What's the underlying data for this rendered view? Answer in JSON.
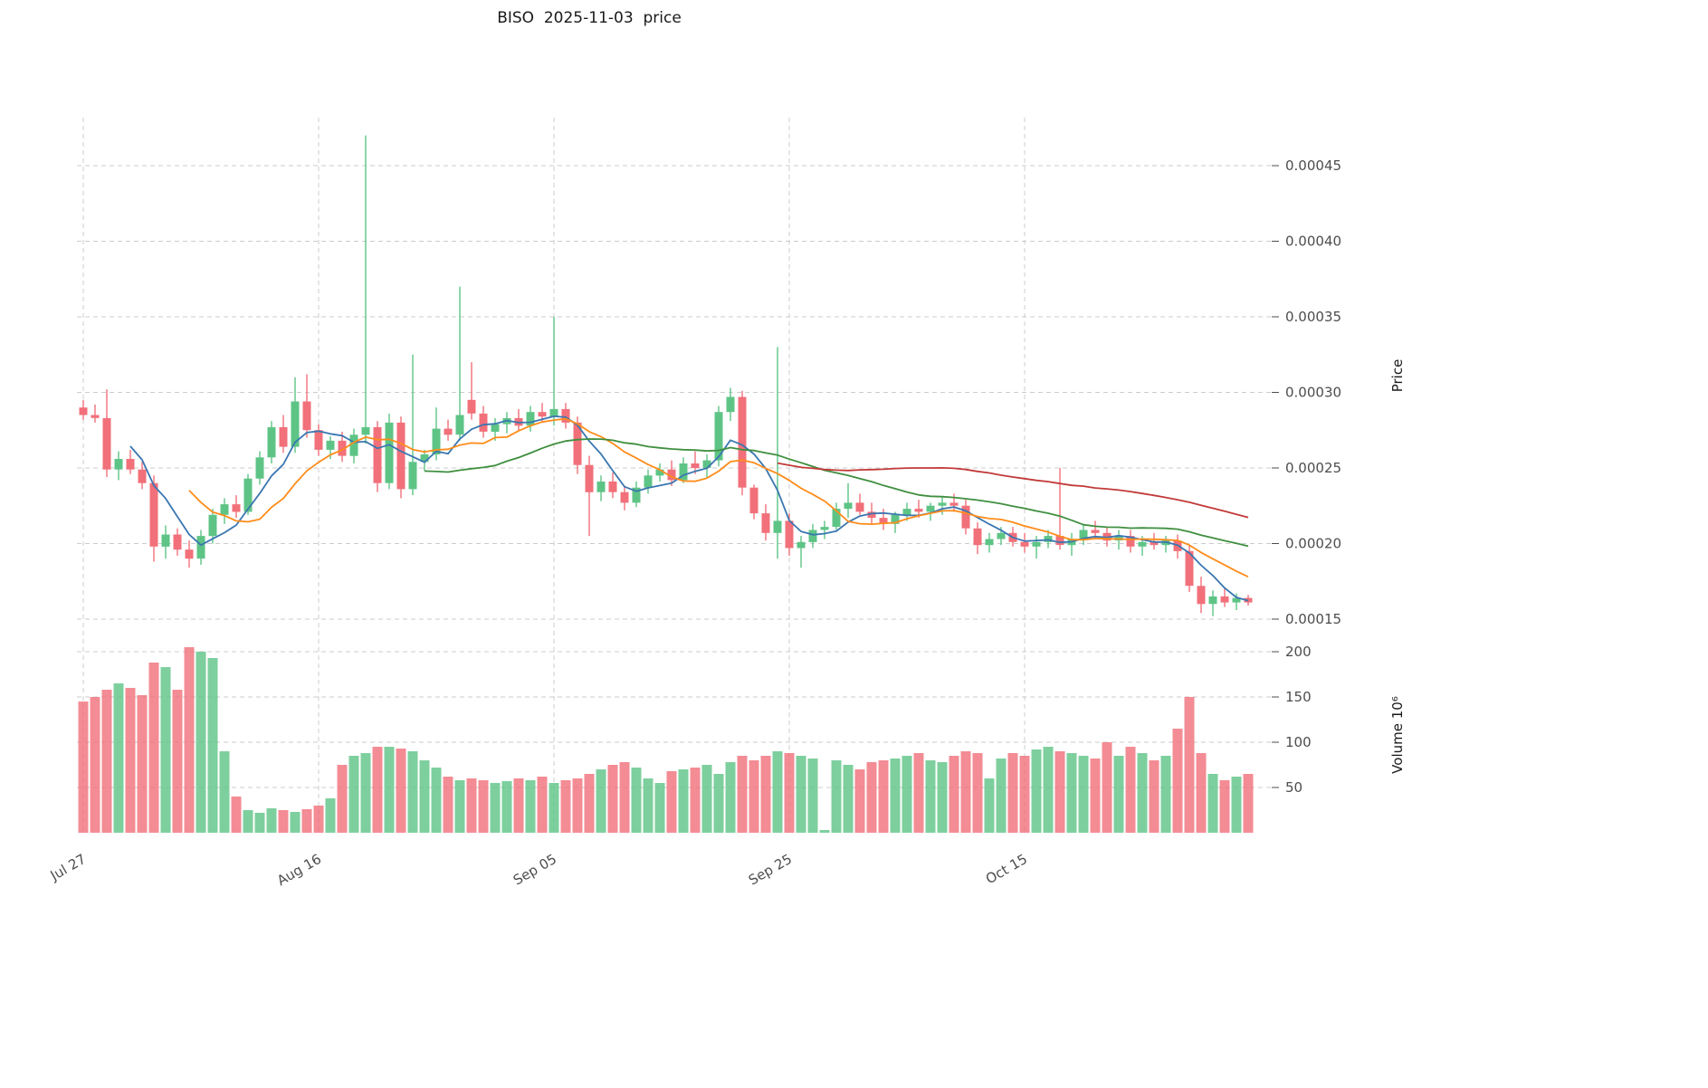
{
  "chart_data": {
    "type": "candlestick",
    "title": "BISO  2025-11-03  price",
    "price_axis": {
      "label": "Price",
      "ticks": [
        0.00015,
        0.0002,
        0.00025,
        0.0003,
        0.00035,
        0.0004,
        0.00045
      ]
    },
    "volume_axis": {
      "label": "Volume 10⁶",
      "unit": "millions",
      "ticks": [
        50,
        100,
        150,
        200
      ]
    },
    "x_axis": {
      "ticks": [
        {
          "label": "Jul 27",
          "index": 0
        },
        {
          "label": "Aug 16",
          "index": 20
        },
        {
          "label": "Sep 05",
          "index": 40
        },
        {
          "label": "Sep 25",
          "index": 60
        },
        {
          "label": "Oct 15",
          "index": 80
        }
      ]
    },
    "colors": {
      "up": "#5ec486",
      "down": "#f1707a",
      "grid": "#cccccc",
      "tick_text": "#4d4d4d"
    },
    "moving_averages": [
      {
        "window": 5,
        "color": "#3a76b0"
      },
      {
        "window": 10,
        "color": "#ff8c1a"
      },
      {
        "window": 30,
        "color": "#3f8f3f"
      },
      {
        "window": 60,
        "color": "#c23a3a"
      }
    ],
    "candle_columns": [
      "open",
      "high",
      "low",
      "close",
      "volume_millions"
    ],
    "price_unit_multiplier": 1e-05,
    "candles": [
      [
        29.0,
        29.5,
        28.2,
        28.5,
        145
      ],
      [
        28.5,
        29.2,
        28.0,
        28.3,
        150
      ],
      [
        28.3,
        30.2,
        24.4,
        24.9,
        158
      ],
      [
        24.9,
        26.1,
        24.2,
        25.6,
        165
      ],
      [
        25.6,
        26.2,
        24.6,
        24.9,
        160
      ],
      [
        24.9,
        25.4,
        23.6,
        24.0,
        152
      ],
      [
        24.0,
        24.5,
        18.8,
        19.8,
        188
      ],
      [
        19.8,
        21.2,
        19.0,
        20.6,
        183
      ],
      [
        20.6,
        21.0,
        19.2,
        19.6,
        158
      ],
      [
        19.6,
        20.2,
        18.4,
        19.0,
        205
      ],
      [
        19.0,
        20.9,
        18.6,
        20.5,
        200
      ],
      [
        20.5,
        22.3,
        20.0,
        21.9,
        193
      ],
      [
        21.9,
        23.0,
        21.3,
        22.6,
        90
      ],
      [
        22.6,
        23.2,
        21.7,
        22.1,
        40
      ],
      [
        22.1,
        24.6,
        21.9,
        24.3,
        25
      ],
      [
        24.3,
        26.1,
        23.9,
        25.7,
        22
      ],
      [
        25.7,
        28.1,
        25.3,
        27.7,
        27
      ],
      [
        27.7,
        28.5,
        26.0,
        26.4,
        25
      ],
      [
        26.4,
        31.0,
        26.0,
        29.4,
        23
      ],
      [
        29.4,
        31.2,
        27.0,
        27.5,
        26
      ],
      [
        27.5,
        27.9,
        25.8,
        26.2,
        30
      ],
      [
        26.2,
        27.1,
        25.6,
        26.8,
        38
      ],
      [
        26.8,
        27.4,
        25.4,
        25.8,
        75
      ],
      [
        25.8,
        27.6,
        25.3,
        27.2,
        85
      ],
      [
        27.2,
        47.0,
        26.6,
        27.7,
        88
      ],
      [
        27.7,
        28.1,
        23.4,
        24.0,
        95
      ],
      [
        24.0,
        28.6,
        23.6,
        28.0,
        95
      ],
      [
        28.0,
        28.4,
        23.0,
        23.6,
        93
      ],
      [
        23.6,
        32.5,
        23.2,
        25.4,
        90
      ],
      [
        25.4,
        26.2,
        24.8,
        25.9,
        80
      ],
      [
        25.9,
        29.0,
        25.5,
        27.6,
        72
      ],
      [
        27.6,
        28.2,
        26.8,
        27.2,
        62
      ],
      [
        27.2,
        37.0,
        26.8,
        28.5,
        58
      ],
      [
        29.5,
        32.0,
        28.2,
        28.6,
        60
      ],
      [
        28.6,
        29.1,
        27.0,
        27.4,
        58
      ],
      [
        27.4,
        28.3,
        26.8,
        27.9,
        55
      ],
      [
        27.9,
        28.7,
        27.3,
        28.3,
        57
      ],
      [
        28.3,
        28.9,
        27.5,
        27.8,
        60
      ],
      [
        27.8,
        29.1,
        27.4,
        28.7,
        58
      ],
      [
        28.7,
        29.3,
        28.0,
        28.4,
        62
      ],
      [
        28.4,
        35.0,
        27.8,
        28.9,
        55
      ],
      [
        28.9,
        29.3,
        27.6,
        28.0,
        58
      ],
      [
        28.0,
        28.4,
        24.6,
        25.2,
        60
      ],
      [
        25.2,
        25.8,
        20.5,
        23.4,
        65
      ],
      [
        23.4,
        24.5,
        22.8,
        24.1,
        70
      ],
      [
        24.1,
        24.7,
        23.0,
        23.4,
        75
      ],
      [
        23.4,
        23.8,
        22.2,
        22.7,
        78
      ],
      [
        22.7,
        24.1,
        22.4,
        23.7,
        72
      ],
      [
        23.7,
        24.9,
        23.3,
        24.5,
        60
      ],
      [
        24.5,
        25.3,
        24.1,
        24.9,
        55
      ],
      [
        24.9,
        25.5,
        23.8,
        24.2,
        68
      ],
      [
        24.2,
        25.7,
        24.0,
        25.3,
        70
      ],
      [
        25.3,
        26.1,
        24.6,
        25.0,
        72
      ],
      [
        25.0,
        25.9,
        24.4,
        25.5,
        75
      ],
      [
        25.5,
        29.1,
        25.1,
        28.7,
        65
      ],
      [
        28.7,
        30.3,
        28.1,
        29.7,
        78
      ],
      [
        29.7,
        30.1,
        23.2,
        23.7,
        85
      ],
      [
        23.7,
        23.9,
        21.6,
        22.0,
        80
      ],
      [
        22.0,
        22.6,
        20.2,
        20.7,
        85
      ],
      [
        20.7,
        33.0,
        19.0,
        21.5,
        90
      ],
      [
        21.5,
        22.0,
        19.2,
        19.7,
        88
      ],
      [
        19.7,
        20.5,
        18.4,
        20.1,
        85
      ],
      [
        20.1,
        21.3,
        19.7,
        20.9,
        82
      ],
      [
        20.9,
        21.5,
        20.3,
        21.1,
        3
      ],
      [
        21.1,
        22.7,
        20.9,
        22.3,
        80
      ],
      [
        22.3,
        24.0,
        21.7,
        22.7,
        75
      ],
      [
        22.7,
        23.3,
        21.9,
        22.1,
        70
      ],
      [
        22.1,
        22.7,
        21.3,
        21.7,
        78
      ],
      [
        21.7,
        22.3,
        20.9,
        21.3,
        80
      ],
      [
        21.3,
        22.1,
        20.7,
        21.9,
        82
      ],
      [
        21.9,
        22.7,
        21.5,
        22.3,
        85
      ],
      [
        22.3,
        22.9,
        21.7,
        22.1,
        88
      ],
      [
        22.1,
        22.7,
        21.5,
        22.5,
        80
      ],
      [
        22.5,
        23.1,
        21.9,
        22.7,
        78
      ],
      [
        22.7,
        23.3,
        22.1,
        22.5,
        85
      ],
      [
        22.5,
        22.9,
        20.6,
        21.0,
        90
      ],
      [
        21.0,
        21.4,
        19.3,
        19.9,
        88
      ],
      [
        19.9,
        20.7,
        19.4,
        20.3,
        60
      ],
      [
        20.3,
        21.1,
        19.9,
        20.7,
        82
      ],
      [
        20.7,
        21.1,
        19.8,
        20.1,
        88
      ],
      [
        20.1,
        20.7,
        19.4,
        19.8,
        85
      ],
      [
        19.8,
        20.5,
        19.0,
        20.1,
        92
      ],
      [
        20.1,
        20.9,
        19.7,
        20.5,
        95
      ],
      [
        20.5,
        25.0,
        19.6,
        19.9,
        90
      ],
      [
        19.9,
        20.7,
        19.2,
        20.3,
        88
      ],
      [
        20.3,
        21.3,
        19.9,
        20.9,
        85
      ],
      [
        20.9,
        21.5,
        20.3,
        20.7,
        82
      ],
      [
        20.7,
        21.1,
        19.8,
        20.2,
        100
      ],
      [
        20.2,
        20.9,
        19.6,
        20.5,
        85
      ],
      [
        20.5,
        20.9,
        19.4,
        19.8,
        95
      ],
      [
        19.8,
        20.5,
        19.2,
        20.1,
        88
      ],
      [
        20.1,
        20.7,
        19.6,
        19.9,
        80
      ],
      [
        19.9,
        20.5,
        19.4,
        20.2,
        85
      ],
      [
        20.2,
        20.6,
        19.0,
        19.5,
        115
      ],
      [
        19.5,
        19.9,
        16.8,
        17.2,
        150
      ],
      [
        17.2,
        17.8,
        15.4,
        16.0,
        88
      ],
      [
        16.0,
        16.9,
        15.2,
        16.5,
        65
      ],
      [
        16.5,
        17.1,
        15.8,
        16.1,
        58
      ],
      [
        16.1,
        16.7,
        15.6,
        16.4,
        62
      ],
      [
        16.4,
        16.6,
        15.9,
        16.1,
        65
      ]
    ]
  }
}
